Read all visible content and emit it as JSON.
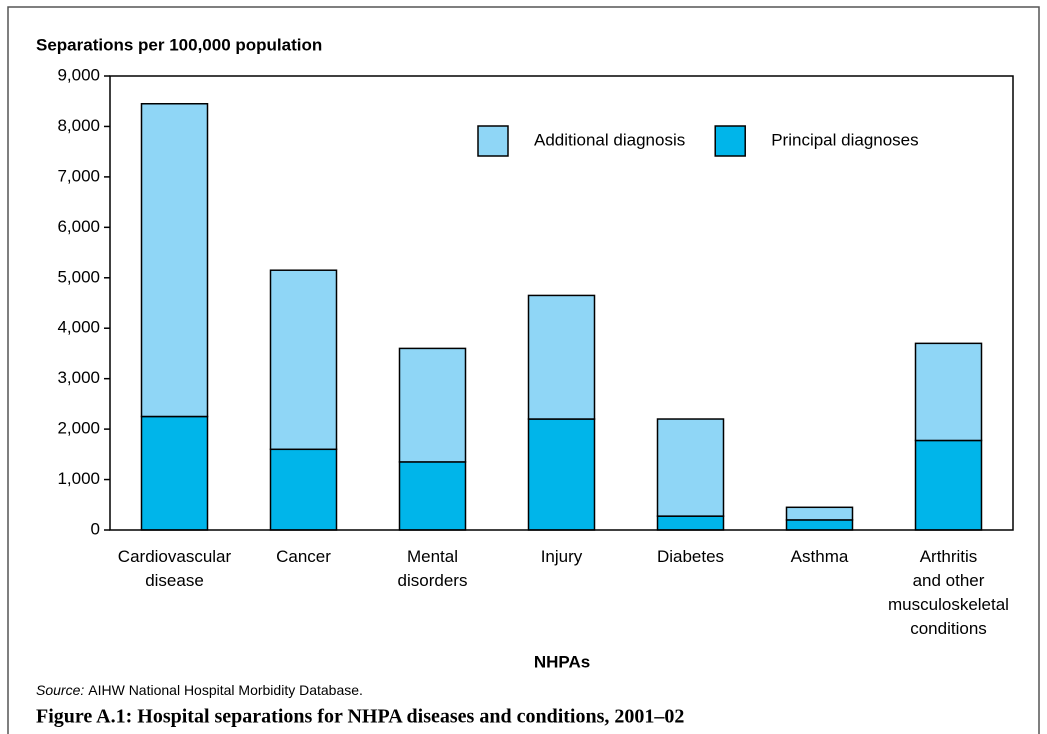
{
  "chart_data": {
    "type": "stacked_bar",
    "y_axis_title": "Separations per 100,000 population",
    "x_axis_title": "NHPAs",
    "categories": [
      [
        "Cardiovascular",
        "disease"
      ],
      [
        "Cancer"
      ],
      [
        "Mental",
        "disorders"
      ],
      [
        "Injury"
      ],
      [
        "Diabetes"
      ],
      [
        "Asthma"
      ],
      [
        "Arthritis",
        "and other",
        "musculoskeletal",
        "conditions"
      ]
    ],
    "series": [
      {
        "name": "Principal diagnoses",
        "color": "#00b5ea",
        "values": [
          2250,
          1600,
          1350,
          2200,
          275,
          200,
          1775
        ]
      },
      {
        "name": "Additional diagnosis",
        "color": "#8fd6f6",
        "values": [
          6200,
          3550,
          2250,
          2450,
          1925,
          250,
          1925
        ]
      }
    ],
    "ylim": [
      0,
      9000
    ],
    "yticks": [
      0,
      {
        "value": 1000,
        "label": "1,000"
      },
      {
        "value": 2000,
        "label": "2,000"
      },
      {
        "value": 3000,
        "label": "3,000"
      },
      {
        "value": 4000,
        "label": "4,000"
      },
      {
        "value": 5000,
        "label": "5,000"
      },
      {
        "value": 6000,
        "label": "6,000"
      },
      {
        "value": 7000,
        "label": "7,000"
      },
      {
        "value": 8000,
        "label": "8,000"
      },
      {
        "value": 9000,
        "label": "9,000"
      }
    ],
    "grid": false,
    "legend": "top-right",
    "source_label": "Source:",
    "source": "AIHW National Hospital Morbidity Database.",
    "caption": "Figure A.1: Hospital separations for NHPA diseases and conditions, 2001–02"
  }
}
